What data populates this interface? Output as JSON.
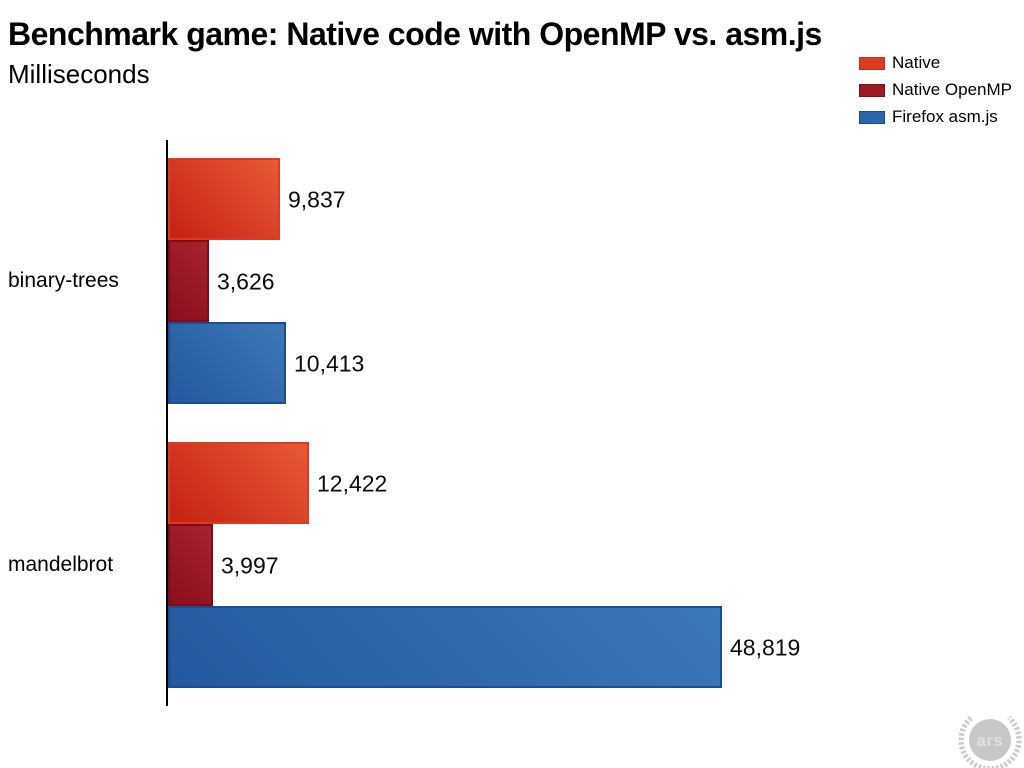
{
  "header": {
    "title": "Benchmark game: Native code with OpenMP vs. asm.js",
    "subtitle": "Milliseconds"
  },
  "legend": {
    "items": [
      {
        "label": "Native",
        "color": "#dc3a22",
        "border": "#c52e18"
      },
      {
        "label": "Native OpenMP",
        "color": "#9b1a26",
        "border": "#7e0d1a"
      },
      {
        "label": "Firefox asm.js",
        "color": "#2c64ad",
        "border": "#1d4c8f"
      }
    ]
  },
  "watermark": {
    "text": "ars"
  },
  "chart_data": {
    "type": "bar",
    "orientation": "horizontal",
    "title": "Benchmark game: Native code with OpenMP vs. asm.js",
    "units_label": "Milliseconds",
    "categories": [
      "binary-trees",
      "mandelbrot"
    ],
    "series": [
      {
        "name": "Native",
        "values": [
          9837,
          12422
        ],
        "value_labels": [
          "9,837",
          "12,422"
        ],
        "fill_from": "#c52112",
        "fill_to": "#e85a35",
        "border": "#dc3a22"
      },
      {
        "name": "Native OpenMP",
        "values": [
          3626,
          3997
        ],
        "value_labels": [
          "3,626",
          "3,997"
        ],
        "fill_from": "#8a0e1e",
        "fill_to": "#a62330",
        "border": "#7e0d1a"
      },
      {
        "name": "Firefox asm.js",
        "values": [
          10413,
          48819
        ],
        "value_labels": [
          "10,413",
          "48,819"
        ],
        "fill_from": "#24589e",
        "fill_to": "#3c79b8",
        "border": "#1d4c8f"
      }
    ],
    "xlim": [
      0,
      48819
    ],
    "grid": false,
    "legend_position": "top-right",
    "value_labels_shown": true,
    "axis_color": "#000000"
  }
}
